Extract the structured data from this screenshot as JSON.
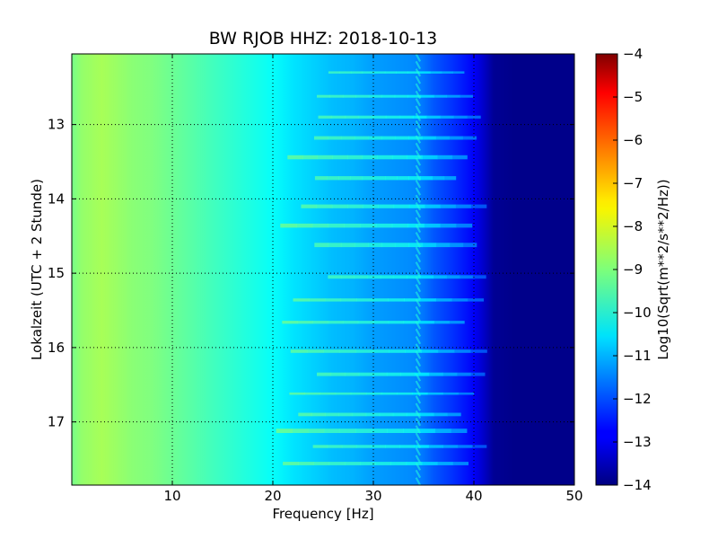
{
  "chart_data": {
    "type": "heatmap",
    "title": "BW RJOB HHZ: 2018-10-13",
    "xlabel": "Frequency [Hz]",
    "ylabel": "Lokalzeit (UTC + 2 Stunde)",
    "colorbar_label": "Log10(Sqrt(m**2/s**2/Hz))",
    "xlim": [
      0,
      50
    ],
    "ylim": [
      17.85,
      12.05
    ],
    "y_inverted": true,
    "grid": true,
    "colormap": "jet",
    "x_ticks": [
      10,
      20,
      30,
      40,
      50
    ],
    "y_ticks": [
      13,
      14,
      15,
      16,
      17
    ],
    "color_range": [
      -14,
      -4
    ],
    "colorbar_ticks": [
      -4,
      -5,
      -6,
      -7,
      -8,
      -9,
      -10,
      -11,
      -12,
      -13,
      -14
    ],
    "spectrum": {
      "frequency_hz": [
        0,
        1,
        2,
        3,
        4,
        6,
        8,
        10,
        12,
        14,
        16,
        18,
        20,
        22,
        24,
        26,
        28,
        30,
        32,
        34,
        35,
        36,
        38,
        40,
        41,
        42,
        44,
        50
      ],
      "log10_amplitude": [
        -9.1,
        -8.8,
        -8.7,
        -8.6,
        -8.7,
        -8.9,
        -9.0,
        -9.2,
        -9.4,
        -9.6,
        -9.8,
        -10.0,
        -10.2,
        -10.5,
        -10.7,
        -10.9,
        -11.0,
        -11.2,
        -11.3,
        -11.4,
        -11.6,
        -11.9,
        -12.3,
        -12.8,
        -13.3,
        -13.8,
        -13.9,
        -13.9
      ]
    },
    "annotations": {
      "banding_times_h": [
        12.3,
        12.62,
        12.9,
        13.18,
        13.44,
        13.72,
        14.1,
        14.36,
        14.62,
        15.05,
        15.36,
        15.66,
        16.05,
        16.36,
        16.62,
        16.9,
        17.12,
        17.33,
        17.56
      ],
      "tremor_line_hz": 34.5
    }
  }
}
